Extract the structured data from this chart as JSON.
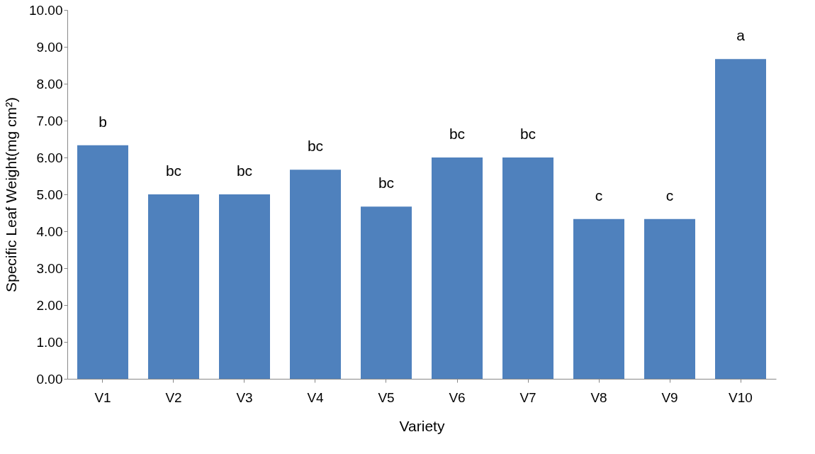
{
  "chart_data": {
    "type": "bar",
    "xlabel": "Variety",
    "ylabel": "Specific Leaf Weight(mg cm²)",
    "categories": [
      "V1",
      "V2",
      "V3",
      "V4",
      "V5",
      "V6",
      "V7",
      "V8",
      "V9",
      "V10"
    ],
    "values": [
      6.33,
      5.0,
      5.0,
      5.67,
      4.67,
      6.0,
      6.0,
      4.33,
      4.33,
      8.67
    ],
    "color": "#4f81bd",
    "ylim": [
      0,
      10
    ],
    "yticks": [
      {
        "value": 0,
        "label": "0.00"
      },
      {
        "value": 1,
        "label": "1.00"
      },
      {
        "value": 2,
        "label": "2.00"
      },
      {
        "value": 3,
        "label": "3.00"
      },
      {
        "value": 4,
        "label": "4.00"
      },
      {
        "value": 5,
        "label": "5.00"
      },
      {
        "value": 6,
        "label": "6.00"
      },
      {
        "value": 7,
        "label": "7.00"
      },
      {
        "value": 8,
        "label": "8.00"
      },
      {
        "value": 9,
        "label": "9.00"
      },
      {
        "value": 10,
        "label": "10.00"
      }
    ],
    "grid": false,
    "annotations": [
      "b",
      "bc",
      "bc",
      "bc",
      "bc",
      "bc",
      "bc",
      "c",
      "c",
      "a"
    ]
  }
}
